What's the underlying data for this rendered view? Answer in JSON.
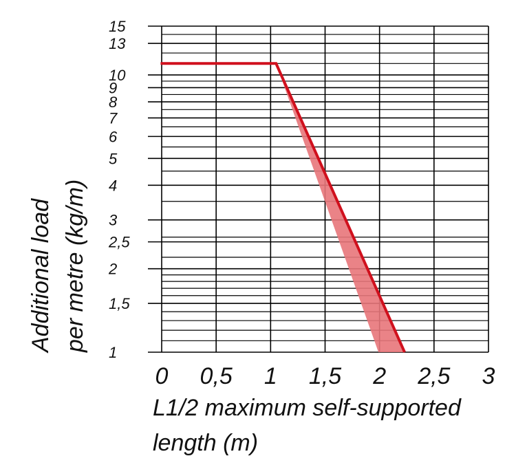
{
  "chart_data": {
    "type": "line",
    "xlabel": [
      "L1/2 maximum self-supported",
      "length (m)"
    ],
    "ylabel": [
      "Additional load",
      "per metre (kg/m)"
    ],
    "x_scale": "linear",
    "y_scale": "log",
    "xlim": [
      0,
      3
    ],
    "ylim": [
      1,
      15
    ],
    "x_ticks": [
      {
        "value": 0,
        "label": "0"
      },
      {
        "value": 0.5,
        "label": "0,5"
      },
      {
        "value": 1,
        "label": "1"
      },
      {
        "value": 1.5,
        "label": "1,5"
      },
      {
        "value": 2,
        "label": "2"
      },
      {
        "value": 2.5,
        "label": "2,5"
      },
      {
        "value": 3,
        "label": "3"
      }
    ],
    "y_ticks": [
      {
        "value": 1,
        "label": "1"
      },
      {
        "value": 1.5,
        "label": "1,5"
      },
      {
        "value": 2,
        "label": "2"
      },
      {
        "value": 2.5,
        "label": "2,5"
      },
      {
        "value": 3,
        "label": "3"
      },
      {
        "value": 4,
        "label": "4"
      },
      {
        "value": 5,
        "label": "5"
      },
      {
        "value": 6,
        "label": "6"
      },
      {
        "value": 7,
        "label": "7"
      },
      {
        "value": 8,
        "label": "8"
      },
      {
        "value": 9,
        "label": "9"
      },
      {
        "value": 10,
        "label": "10"
      },
      {
        "value": 13,
        "label": "13"
      },
      {
        "value": 15,
        "label": "15"
      }
    ],
    "grid": true,
    "y_minor_grid": [
      1.1,
      1.2,
      1.3,
      1.4,
      1.6,
      1.7,
      1.8,
      1.9,
      2.2,
      2.6,
      3.5,
      4.5,
      5.5,
      6.5,
      7.5,
      8.5,
      9.5,
      11,
      12,
      14
    ],
    "series": [
      {
        "color": "#d0101d",
        "points": [
          [
            -0.01,
            11
          ],
          [
            1.05,
            11
          ],
          [
            2.23,
            1
          ]
        ]
      }
    ],
    "band": {
      "color": "#e8767a",
      "polygon": [
        [
          1.05,
          11
        ],
        [
          1.99,
          1
        ],
        [
          2.23,
          1
        ]
      ]
    }
  }
}
